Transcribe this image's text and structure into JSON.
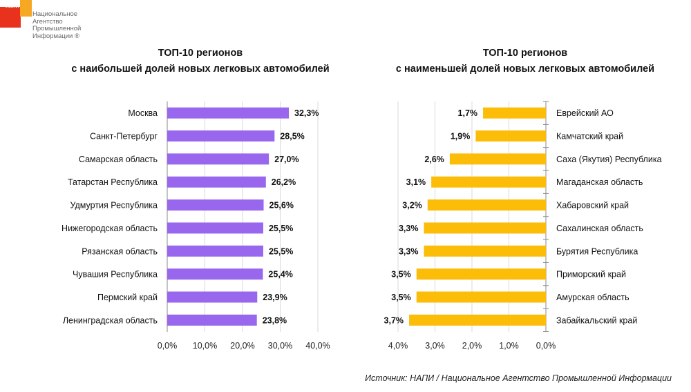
{
  "logo": {
    "abbr": "НАПИ",
    "lines": [
      "Национальное",
      "Агентство",
      "Промышленной",
      "Информации ®"
    ],
    "colors": {
      "red": "#e8321e",
      "orange": "#f7a823"
    }
  },
  "source": "Источник: НАПИ / Национальное Агентство Промышленной Информации",
  "chart_data": [
    {
      "type": "bar",
      "orientation": "horizontal",
      "title_lines": [
        "ТОП-10 регионов",
        "с наибольшей долей новых легковых автомобилей"
      ],
      "categories": [
        "Москва",
        "Санкт-Петербург",
        "Самарская область",
        "Татарстан Республика",
        "Удмуртия Республика",
        "Нижегородская область",
        "Рязанская область",
        "Чувашия Республика",
        "Пермский край",
        "Ленинградская область"
      ],
      "values": [
        32.3,
        28.5,
        27.0,
        26.2,
        25.6,
        25.5,
        25.5,
        25.4,
        23.9,
        23.8
      ],
      "data_labels": [
        "32,3%",
        "28,5%",
        "27,0%",
        "26,2%",
        "25,6%",
        "25,5%",
        "25,5%",
        "25,4%",
        "23,9%",
        "23,8%"
      ],
      "xlim": [
        0,
        40
      ],
      "ticks": [
        0,
        10,
        20,
        30,
        40
      ],
      "tick_labels": [
        "0,0%",
        "10,0%",
        "20,0%",
        "30,0%",
        "40,0%"
      ],
      "grid": true,
      "reversed_axis": false,
      "color": "#9966ee"
    },
    {
      "type": "bar",
      "orientation": "horizontal",
      "title_lines": [
        "ТОП-10 регионов",
        "с наименьшей долей новых легковых автомобилей"
      ],
      "categories": [
        "Еврейский АО",
        "Камчатский край",
        "Саха (Якутия) Республика",
        "Магаданская область",
        "Хабаровский край",
        "Сахалинская область",
        "Бурятия Республика",
        "Приморский край",
        "Амурская область",
        "Забайкальский край"
      ],
      "values": [
        1.7,
        1.9,
        2.6,
        3.1,
        3.2,
        3.3,
        3.3,
        3.5,
        3.5,
        3.7
      ],
      "data_labels": [
        "1,7%",
        "1,9%",
        "2,6%",
        "3,1%",
        "3,2%",
        "3,3%",
        "3,3%",
        "3,5%",
        "3,5%",
        "3,7%"
      ],
      "xlim": [
        0,
        4
      ],
      "ticks": [
        4,
        3,
        2,
        1,
        0
      ],
      "tick_labels": [
        "4,0%",
        "3,0%",
        "2,0%",
        "1,0%",
        "0,0%"
      ],
      "grid": true,
      "reversed_axis": true,
      "color": "#fbbd08"
    }
  ]
}
